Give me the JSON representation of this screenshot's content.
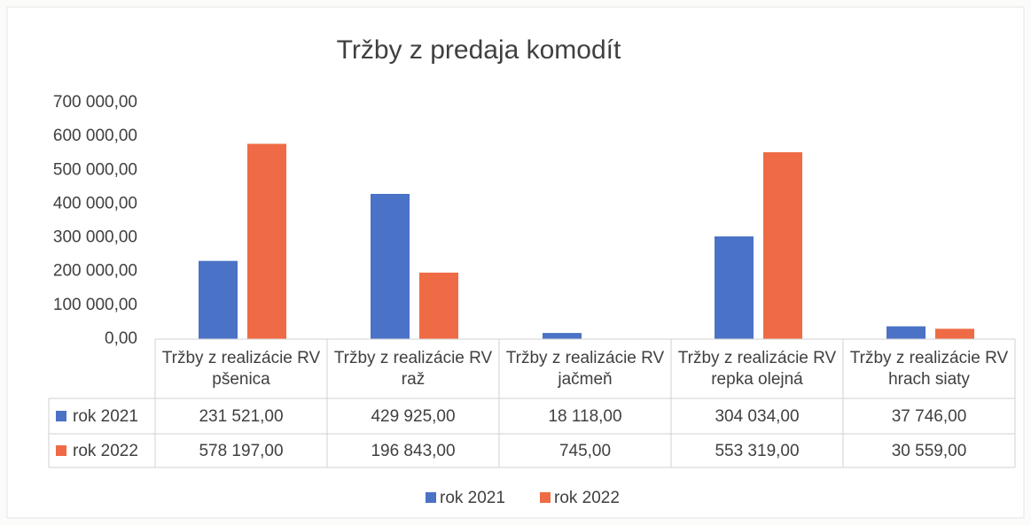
{
  "chart_data": {
    "type": "bar",
    "title": "Tržby z predaja komodít",
    "categories": [
      "Tržby z realizácie RV pšenica",
      "Tržby z realizácie RV raž",
      "Tržby z realizácie RV jačmeň",
      "Tržby z realizácie RV repka olejná",
      "Tržby z realizácie RV hrach siaty"
    ],
    "series": [
      {
        "name": "rok 2021",
        "color": "#4a72c6",
        "values": [
          231521,
          429925,
          18118,
          304034,
          37746
        ],
        "value_labels": [
          "231 521,00",
          "429 925,00",
          "18 118,00",
          "304 034,00",
          "37 746,00"
        ]
      },
      {
        "name": "rok 2022",
        "color": "#ef6b45",
        "values": [
          578197,
          196843,
          745,
          553319,
          30559
        ],
        "value_labels": [
          "578 197,00",
          "196 843,00",
          "745,00",
          "553 319,00",
          "30 559,00"
        ]
      }
    ],
    "ylim": [
      0,
      700000
    ],
    "yticks": [
      {
        "value": 0,
        "label": "0,00"
      },
      {
        "value": 100000,
        "label": "100 000,00"
      },
      {
        "value": 200000,
        "label": "200 000,00"
      },
      {
        "value": 300000,
        "label": "300 000,00"
      },
      {
        "value": 400000,
        "label": "400 000,00"
      },
      {
        "value": 500000,
        "label": "500 000,00"
      },
      {
        "value": 600000,
        "label": "600 000,00"
      },
      {
        "value": 700000,
        "label": "700 000,00"
      }
    ],
    "grid": false,
    "legend": "bottom",
    "data_table": true
  }
}
